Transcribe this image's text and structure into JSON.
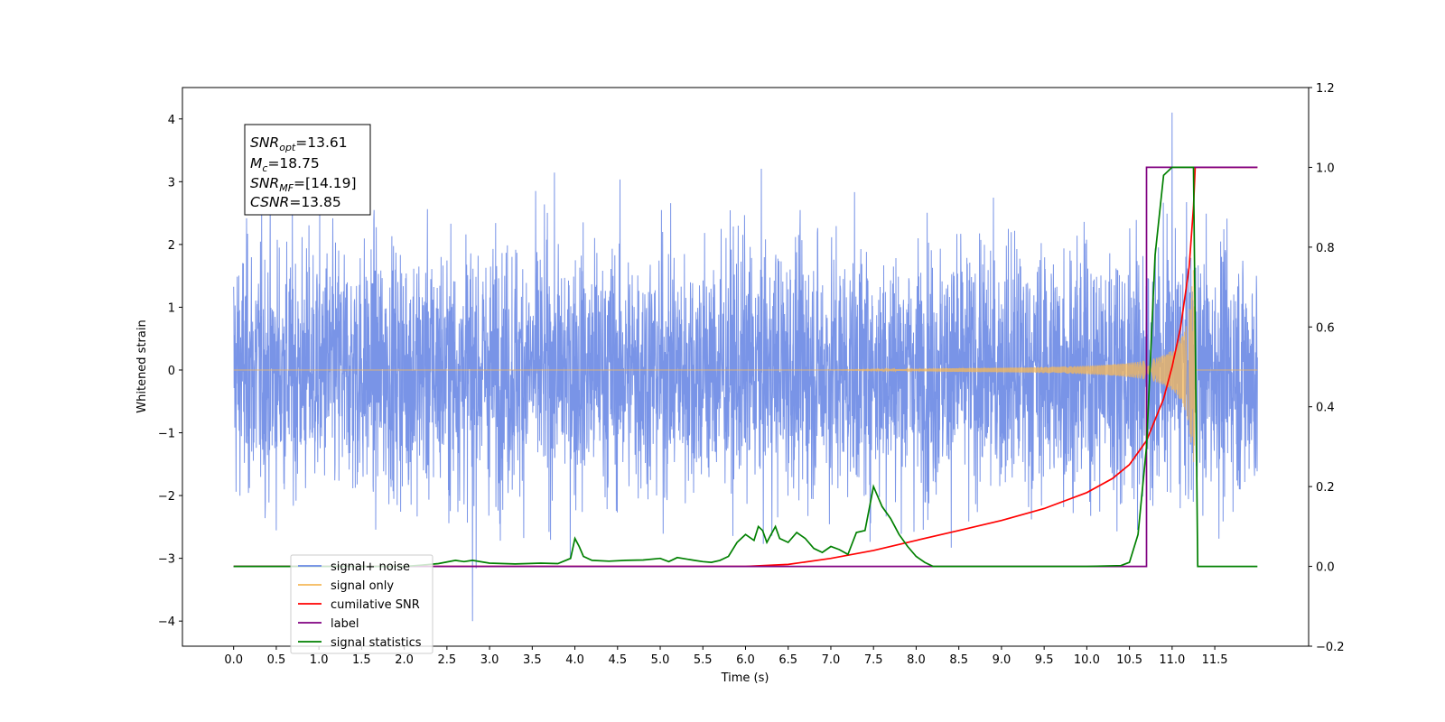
{
  "chart_data": {
    "type": "line",
    "xlabel": "Time (s)",
    "ylabel": "Whitened strain",
    "xlim": [
      -0.6,
      12.6
    ],
    "ylim": [
      -4.4,
      4.5
    ],
    "ylim_right": [
      -0.2,
      1.2
    ],
    "grid": false,
    "legend_position": "lower-left",
    "x_ticks": [
      "0.0",
      "0.5",
      "1.0",
      "1.5",
      "2.0",
      "2.5",
      "3.0",
      "3.5",
      "4.0",
      "4.5",
      "5.0",
      "5.5",
      "6.0",
      "6.5",
      "7.0",
      "7.5",
      "8.0",
      "8.5",
      "9.0",
      "9.5",
      "10.0",
      "10.5",
      "11.0",
      "11.5"
    ],
    "y_ticks_left": [
      "4",
      "3",
      "2",
      "1",
      "0",
      "−1",
      "−2",
      "−3",
      "−4"
    ],
    "y_ticks_right": [
      "1.2",
      "1.0",
      "0.8",
      "0.6",
      "0.4",
      "0.2",
      "0.0",
      "−0.2"
    ],
    "stats_box": {
      "snr_opt": {
        "base": "SNR",
        "sub": "opt",
        "value": "=13.61"
      },
      "mc": {
        "base": "M",
        "sub": "c",
        "value": "=18.75"
      },
      "snr_mf": {
        "base": "SNR",
        "sub": "MF",
        "value": "=[14.19]"
      },
      "csnr": {
        "base": "CSNR",
        "sub": "",
        "value": "=13.85"
      }
    },
    "series": [
      {
        "name": "signal+ noise",
        "color": "#6a88e4",
        "axis": "left",
        "x_range": [
          0.0,
          12.0
        ],
        "amplitude_sd": 1.0,
        "extremes_approx": [
          4.1,
          -4.0
        ]
      },
      {
        "name": "signal only",
        "color": "#f5b85a",
        "axis": "left",
        "x_range": [
          0.0,
          12.0
        ],
        "chirp_peak_amplitude": 2.5,
        "peak_time": 11.27,
        "rise_start": 6.9
      },
      {
        "name": "cumilative SNR",
        "color": "#ff0000",
        "axis": "right",
        "x": [
          0.0,
          6.0,
          6.5,
          7.0,
          7.5,
          8.0,
          8.5,
          9.0,
          9.5,
          10.0,
          10.3,
          10.5,
          10.7,
          10.9,
          11.0,
          11.1,
          11.2,
          11.25,
          11.27,
          12.0
        ],
        "y": [
          0.0,
          0.0,
          0.005,
          0.02,
          0.04,
          0.065,
          0.09,
          0.115,
          0.145,
          0.185,
          0.22,
          0.255,
          0.315,
          0.42,
          0.5,
          0.6,
          0.75,
          0.9,
          1.0,
          1.0
        ]
      },
      {
        "name": "label",
        "color": "#800080",
        "axis": "right",
        "x": [
          0.0,
          10.7,
          10.7,
          11.27,
          11.27,
          12.0
        ],
        "y": [
          0.0,
          0.0,
          1.0,
          1.0,
          1.0,
          1.0
        ]
      },
      {
        "name": "signal statistics",
        "color": "#008000",
        "axis": "right",
        "x": [
          0.0,
          2.0,
          2.2,
          2.4,
          2.6,
          2.7,
          2.8,
          3.0,
          3.3,
          3.6,
          3.8,
          3.95,
          4.0,
          4.05,
          4.1,
          4.2,
          4.4,
          4.6,
          4.8,
          5.0,
          5.1,
          5.2,
          5.4,
          5.5,
          5.6,
          5.7,
          5.8,
          5.9,
          6.0,
          6.1,
          6.15,
          6.2,
          6.25,
          6.3,
          6.35,
          6.4,
          6.5,
          6.6,
          6.7,
          6.8,
          6.9,
          7.0,
          7.1,
          7.2,
          7.3,
          7.4,
          7.5,
          7.6,
          7.7,
          7.8,
          7.9,
          8.0,
          8.1,
          8.2,
          10.0,
          10.4,
          10.5,
          10.6,
          10.7,
          10.8,
          10.9,
          11.0,
          11.1,
          11.2,
          11.25,
          11.3,
          12.0
        ],
        "y": [
          0.0,
          0.0,
          0.003,
          0.007,
          0.015,
          0.012,
          0.015,
          0.008,
          0.006,
          0.008,
          0.007,
          0.02,
          0.07,
          0.05,
          0.025,
          0.015,
          0.013,
          0.015,
          0.016,
          0.02,
          0.012,
          0.022,
          0.015,
          0.012,
          0.01,
          0.015,
          0.025,
          0.06,
          0.08,
          0.065,
          0.1,
          0.09,
          0.06,
          0.08,
          0.1,
          0.07,
          0.06,
          0.085,
          0.07,
          0.045,
          0.035,
          0.05,
          0.042,
          0.03,
          0.085,
          0.09,
          0.2,
          0.15,
          0.12,
          0.08,
          0.05,
          0.025,
          0.01,
          0.0,
          0.0,
          0.002,
          0.01,
          0.08,
          0.3,
          0.78,
          0.98,
          1.0,
          1.0,
          1.0,
          1.0,
          0.0,
          0.0
        ]
      }
    ]
  }
}
